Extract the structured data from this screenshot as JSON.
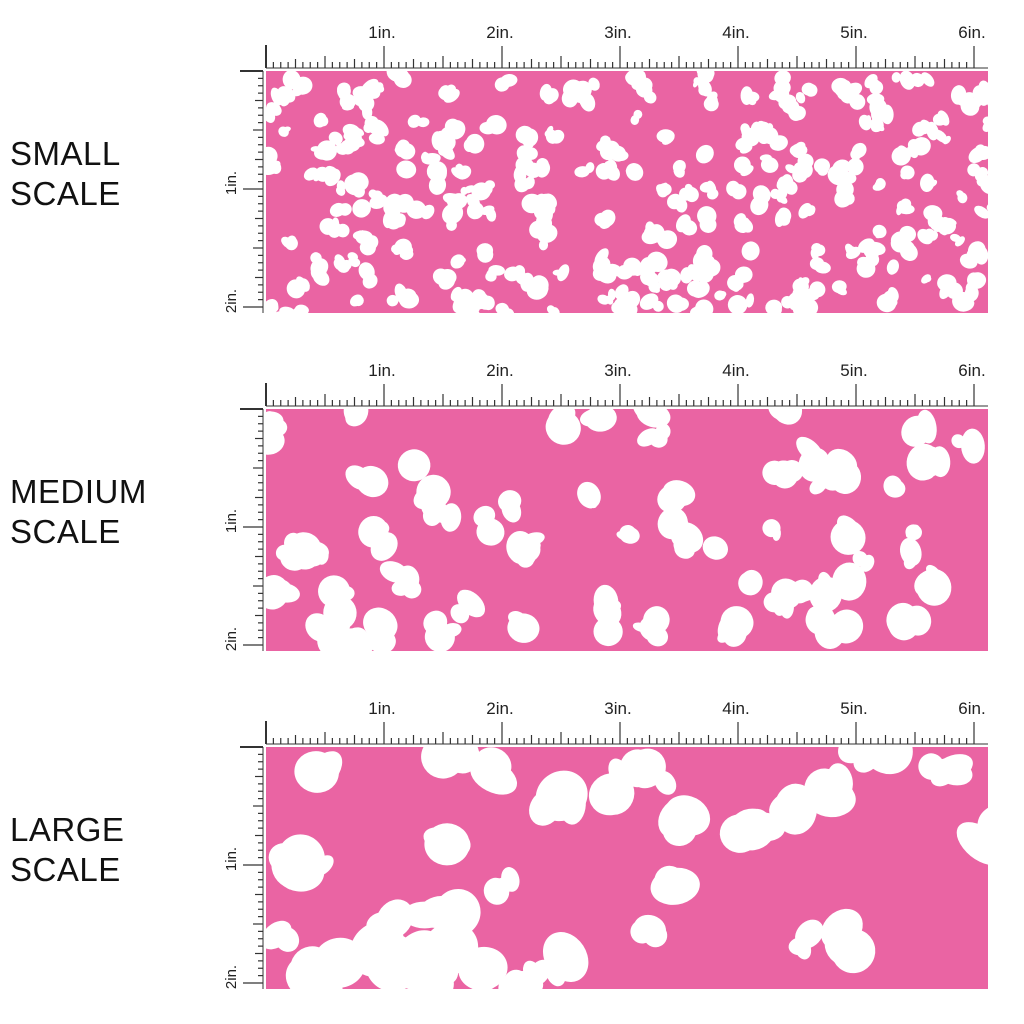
{
  "colors": {
    "fabric": "#ea64a3",
    "spot": "#ffffff",
    "ruler": "#333333"
  },
  "ruler": {
    "horizontal_labels": [
      "1in.",
      "2in.",
      "3in.",
      "4in.",
      "5in.",
      "6in."
    ],
    "vertical_labels": [
      "1in.",
      "2in."
    ]
  },
  "scales": [
    {
      "line1": "SMALL",
      "line2": "SCALE"
    },
    {
      "line1": "MEDIUM",
      "line2": "SCALE"
    },
    {
      "line1": "LARGE",
      "line2": "SCALE"
    }
  ]
}
